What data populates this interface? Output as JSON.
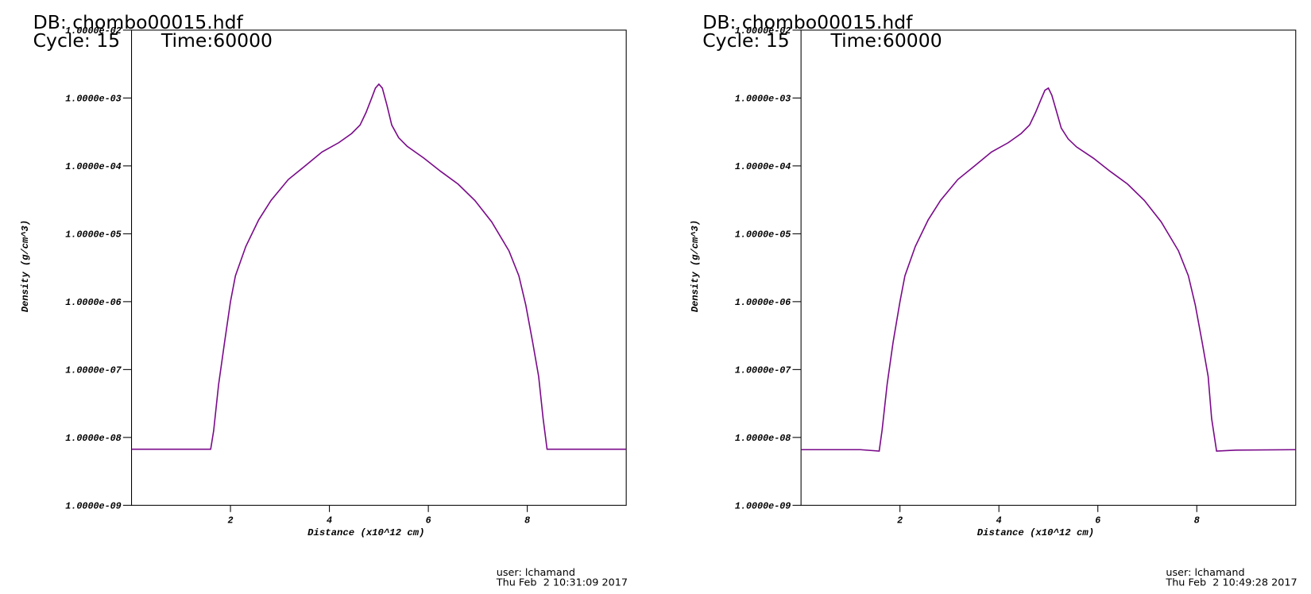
{
  "chart_data": [
    {
      "type": "line",
      "title": "DB: chombo00015.hdf",
      "annotations": [
        "Cycle: 15",
        "Time:60000"
      ],
      "x_label": "Distance (x10^12 cm)",
      "y_label": "Density (g/cm^3)",
      "user": "user: lchamand",
      "timestamp": "Thu Feb  2 10:31:09 2017",
      "log_y": true,
      "xlim": [
        0,
        10
      ],
      "xticks": [
        2,
        4,
        6,
        8
      ],
      "ylim": [
        1e-09,
        0.01
      ],
      "yticks": [
        {
          "value": 1e-09,
          "label": "1.0000e-09"
        },
        {
          "value": 1e-08,
          "label": "1.0000e-08"
        },
        {
          "value": 1e-07,
          "label": "1.0000e-07"
        },
        {
          "value": 1e-06,
          "label": "1.0000e-06"
        },
        {
          "value": 1e-05,
          "label": "1.0000e-05"
        },
        {
          "value": 0.0001,
          "label": "1.0000e-04"
        },
        {
          "value": 0.001,
          "label": "1.0000e-03"
        },
        {
          "value": 0.01,
          "label": "1.0000e-02"
        }
      ],
      "x": [
        0,
        1.6,
        1.66,
        1.76,
        1.88,
        2.0,
        2.1,
        2.31,
        2.57,
        2.82,
        3.17,
        3.51,
        3.85,
        4.19,
        4.45,
        4.62,
        4.74,
        4.85,
        4.93,
        5.0,
        5.07,
        5.16,
        5.26,
        5.4,
        5.57,
        5.91,
        6.25,
        6.6,
        6.94,
        7.28,
        7.63,
        7.83,
        7.97,
        8.11,
        8.23,
        8.32,
        8.4,
        10
      ],
      "series": [
        {
          "name": "Density",
          "color": "#7a0a8a",
          "values": [
            6.7e-09,
            6.7e-09,
            1.25e-08,
            6e-08,
            2.5e-07,
            1e-06,
            2.4e-06,
            6.5e-06,
            1.6e-05,
            3.1e-05,
            6.3e-05,
            0.0001,
            0.00016,
            0.00022,
            0.0003,
            0.0004,
            0.00061,
            0.00098,
            0.0014,
            0.0016,
            0.0014,
            0.0008,
            0.0004,
            0.00026,
            0.000195,
            0.00013,
            8.3e-05,
            5.4e-05,
            3.1e-05,
            1.5e-05,
            5.6e-06,
            2.4e-06,
            8.9e-07,
            2.5e-07,
            7.9e-08,
            1.9e-08,
            6.7e-09,
            6.7e-09
          ]
        }
      ]
    },
    {
      "type": "line",
      "title": "DB: chombo00015.hdf",
      "annotations": [
        "Cycle: 15",
        "Time:60000"
      ],
      "x_label": "Distance (x10^12 cm)",
      "y_label": "Density (g/cm^3)",
      "user": "user: lchamand",
      "timestamp": "Thu Feb  2 10:49:28 2017",
      "log_y": true,
      "xlim": [
        0,
        10
      ],
      "xticks": [
        2,
        4,
        6,
        8
      ],
      "ylim": [
        1e-09,
        0.01
      ],
      "yticks": [
        {
          "value": 1e-09,
          "label": "1.0000e-09"
        },
        {
          "value": 1e-08,
          "label": "1.0000e-08"
        },
        {
          "value": 1e-07,
          "label": "1.0000e-07"
        },
        {
          "value": 1e-06,
          "label": "1.0000e-06"
        },
        {
          "value": 1e-05,
          "label": "1.0000e-05"
        },
        {
          "value": 0.0001,
          "label": "1.0000e-04"
        },
        {
          "value": 0.001,
          "label": "1.0000e-03"
        },
        {
          "value": 0.01,
          "label": "1.0000e-02"
        }
      ],
      "x": [
        0,
        1.2,
        1.58,
        1.64,
        1.74,
        1.86,
        2.0,
        2.1,
        2.31,
        2.57,
        2.82,
        3.17,
        3.51,
        3.85,
        4.19,
        4.45,
        4.62,
        4.74,
        4.85,
        4.93,
        5.0,
        5.07,
        5.16,
        5.26,
        5.4,
        5.57,
        5.91,
        6.25,
        6.6,
        6.94,
        7.28,
        7.63,
        7.83,
        7.97,
        8.11,
        8.23,
        8.3,
        8.4,
        8.8,
        10
      ],
      "series": [
        {
          "name": "Density",
          "color": "#7a0a8a",
          "values": [
            6.6e-09,
            6.6e-09,
            6.3e-09,
            1.3e-08,
            6e-08,
            2.5e-07,
            1e-06,
            2.4e-06,
            6.5e-06,
            1.6e-05,
            3.1e-05,
            6.3e-05,
            0.0001,
            0.00016,
            0.00022,
            0.0003,
            0.0004,
            0.00061,
            0.00095,
            0.0013,
            0.0014,
            0.0011,
            0.00065,
            0.00036,
            0.00025,
            0.00019,
            0.00013,
            8.3e-05,
            5.4e-05,
            3.1e-05,
            1.5e-05,
            5.6e-06,
            2.4e-06,
            8.9e-07,
            2.5e-07,
            7.9e-08,
            1.9e-08,
            6.3e-09,
            6.5e-09,
            6.6e-09
          ]
        }
      ]
    }
  ]
}
